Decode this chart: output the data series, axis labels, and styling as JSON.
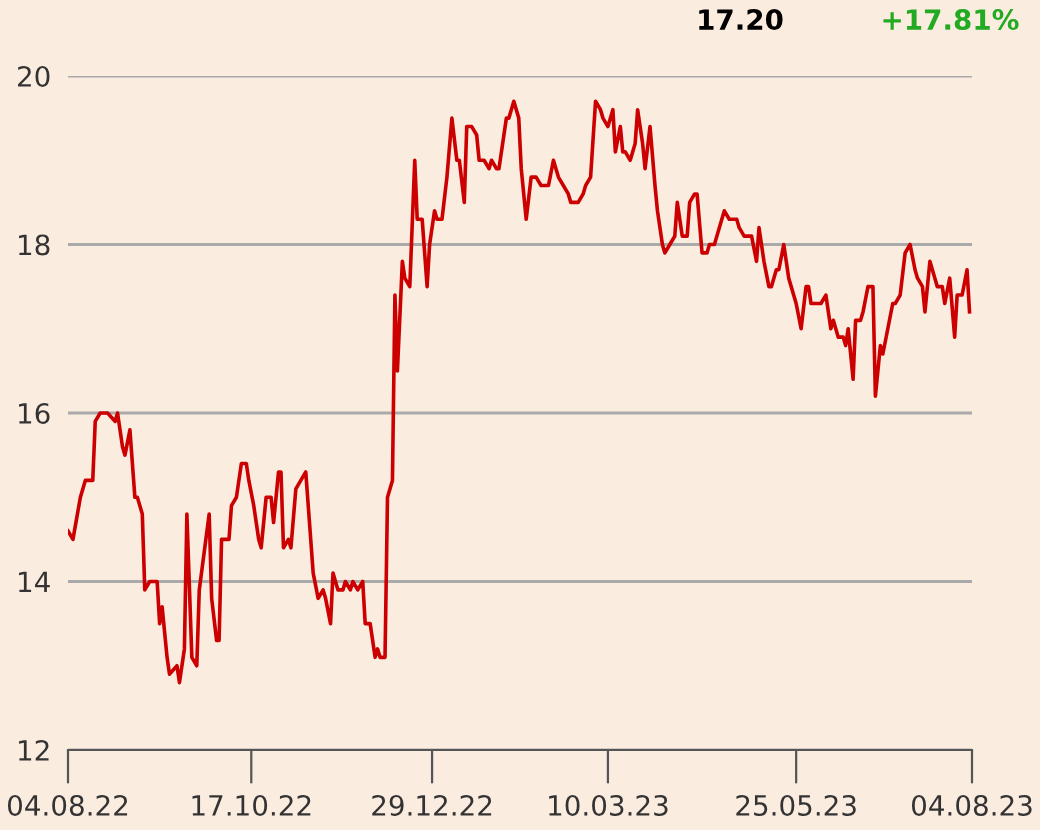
{
  "chart_data": {
    "type": "line",
    "annotations": [
      "17.20",
      "+17.81%"
    ],
    "x": [
      "2022-08-04",
      "2022-08-06",
      "2022-08-09",
      "2022-08-11",
      "2022-08-14",
      "2022-08-15",
      "2022-08-17",
      "2022-08-20",
      "2022-08-23",
      "2022-08-24",
      "2022-08-26",
      "2022-08-27",
      "2022-08-29",
      "2022-08-31",
      "2022-09-01",
      "2022-09-03",
      "2022-09-04",
      "2022-09-06",
      "2022-09-09",
      "2022-09-10",
      "2022-09-11",
      "2022-09-13",
      "2022-09-14",
      "2022-09-17",
      "2022-09-18",
      "2022-09-20",
      "2022-09-21",
      "2022-09-23",
      "2022-09-25",
      "2022-09-26",
      "2022-09-30",
      "2022-10-01",
      "2022-10-03",
      "2022-10-04",
      "2022-10-05",
      "2022-10-08",
      "2022-10-09",
      "2022-10-11",
      "2022-10-13",
      "2022-10-15",
      "2022-10-16",
      "2022-10-18",
      "2022-10-20",
      "2022-10-21",
      "2022-10-23",
      "2022-10-25",
      "2022-10-26",
      "2022-10-28",
      "2022-10-29",
      "2022-10-30",
      "2022-11-01",
      "2022-11-02",
      "2022-11-04",
      "2022-11-06",
      "2022-11-08",
      "2022-11-10",
      "2022-11-11",
      "2022-11-13",
      "2022-11-15",
      "2022-11-16",
      "2022-11-18",
      "2022-11-19",
      "2022-11-21",
      "2022-11-23",
      "2022-11-24",
      "2022-11-26",
      "2022-11-27",
      "2022-11-29",
      "2022-12-01",
      "2022-12-02",
      "2022-12-04",
      "2022-12-06",
      "2022-12-07",
      "2022-12-08",
      "2022-12-10",
      "2022-12-11",
      "2022-12-13",
      "2022-12-14",
      "2022-12-15",
      "2022-12-17",
      "2022-12-18",
      "2022-12-20",
      "2022-12-22",
      "2022-12-23",
      "2022-12-25",
      "2022-12-27",
      "2022-12-28",
      "2022-12-30",
      "2022-12-31",
      "2023-01-02",
      "2023-01-04",
      "2023-01-06",
      "2023-01-08",
      "2023-01-09",
      "2023-01-11",
      "2023-01-12",
      "2023-01-14",
      "2023-01-16",
      "2023-01-17",
      "2023-01-19",
      "2023-01-21",
      "2023-01-22",
      "2023-01-24",
      "2023-01-25",
      "2023-01-28",
      "2023-01-29",
      "2023-01-31",
      "2023-02-02",
      "2023-02-03",
      "2023-02-05",
      "2023-02-07",
      "2023-02-09",
      "2023-02-11",
      "2023-02-14",
      "2023-02-16",
      "2023-02-18",
      "2023-02-20",
      "2023-02-22",
      "2023-02-23",
      "2023-02-26",
      "2023-02-28",
      "2023-03-01",
      "2023-03-03",
      "2023-03-05",
      "2023-03-07",
      "2023-03-08",
      "2023-03-10",
      "2023-03-12",
      "2023-03-13",
      "2023-03-15",
      "2023-03-16",
      "2023-03-17",
      "2023-03-19",
      "2023-03-21",
      "2023-03-22",
      "2023-03-24",
      "2023-03-25",
      "2023-03-27",
      "2023-03-29",
      "2023-03-30",
      "2023-04-01",
      "2023-04-02",
      "2023-04-04",
      "2023-04-06",
      "2023-04-07",
      "2023-04-09",
      "2023-04-11",
      "2023-04-12",
      "2023-04-14",
      "2023-04-15",
      "2023-04-17",
      "2023-04-19",
      "2023-04-20",
      "2023-04-22",
      "2023-04-23",
      "2023-04-26",
      "2023-04-28",
      "2023-05-01",
      "2023-05-02",
      "2023-05-04",
      "2023-05-06",
      "2023-05-07",
      "2023-05-09",
      "2023-05-10",
      "2023-05-12",
      "2023-05-14",
      "2023-05-15",
      "2023-05-17",
      "2023-05-18",
      "2023-05-20",
      "2023-05-22",
      "2023-05-23",
      "2023-05-25",
      "2023-05-27",
      "2023-05-29",
      "2023-05-30",
      "2023-05-31",
      "2023-06-02",
      "2023-06-04",
      "2023-06-06",
      "2023-06-08",
      "2023-06-09",
      "2023-06-11",
      "2023-06-13",
      "2023-06-14",
      "2023-06-15",
      "2023-06-17",
      "2023-06-18",
      "2023-06-20",
      "2023-06-21",
      "2023-06-23",
      "2023-06-25",
      "2023-06-26",
      "2023-06-28",
      "2023-06-29",
      "2023-07-01",
      "2023-07-03",
      "2023-07-04",
      "2023-07-06",
      "2023-07-08",
      "2023-07-10",
      "2023-07-12",
      "2023-07-13",
      "2023-07-15",
      "2023-07-16",
      "2023-07-18",
      "2023-07-20",
      "2023-07-21",
      "2023-07-23",
      "2023-07-24",
      "2023-07-26",
      "2023-07-28",
      "2023-07-29",
      "2023-07-31",
      "2023-08-02",
      "2023-08-03"
    ],
    "series": [
      {
        "color": "#cc0000",
        "values": [
          14.6,
          14.5,
          15.0,
          15.2,
          15.2,
          15.9,
          16.0,
          16.0,
          15.9,
          16.0,
          15.6,
          15.5,
          15.8,
          15.0,
          15.0,
          14.8,
          13.9,
          14.0,
          14.0,
          13.5,
          13.7,
          13.1,
          12.9,
          13.0,
          12.8,
          13.2,
          14.8,
          13.1,
          13.0,
          13.9,
          14.8,
          13.8,
          13.3,
          13.3,
          14.5,
          14.5,
          14.9,
          15.0,
          15.4,
          15.4,
          15.2,
          14.9,
          14.5,
          14.4,
          15.0,
          15.0,
          14.7,
          15.3,
          15.3,
          14.4,
          14.5,
          14.4,
          15.1,
          15.2,
          15.3,
          14.5,
          14.1,
          13.8,
          13.9,
          13.8,
          13.5,
          14.1,
          13.9,
          13.9,
          14.0,
          13.9,
          14.0,
          13.9,
          14.0,
          13.5,
          13.5,
          13.1,
          13.2,
          13.1,
          13.1,
          15.0,
          15.2,
          17.4,
          16.5,
          17.8,
          17.6,
          17.5,
          19.0,
          18.3,
          18.3,
          17.5,
          18.0,
          18.4,
          18.3,
          18.3,
          18.8,
          19.5,
          19.0,
          19.0,
          18.5,
          19.4,
          19.4,
          19.3,
          19.0,
          19.0,
          18.9,
          19.0,
          18.9,
          18.9,
          19.5,
          19.5,
          19.7,
          19.5,
          18.9,
          18.3,
          18.8,
          18.8,
          18.7,
          18.7,
          19.0,
          18.8,
          18.7,
          18.6,
          18.5,
          18.5,
          18.6,
          18.7,
          18.8,
          19.7,
          19.6,
          19.5,
          19.4,
          19.6,
          19.1,
          19.4,
          19.1,
          19.1,
          19.0,
          19.2,
          19.6,
          19.2,
          18.9,
          19.4,
          18.7,
          18.4,
          18.0,
          17.9,
          18.0,
          18.1,
          18.5,
          18.1,
          18.1,
          18.5,
          18.6,
          18.6,
          17.9,
          17.9,
          18.0,
          18.0,
          18.1,
          18.4,
          18.3,
          18.3,
          18.2,
          18.1,
          18.1,
          18.1,
          17.8,
          18.2,
          17.8,
          17.5,
          17.5,
          17.7,
          17.7,
          18.0,
          17.6,
          17.5,
          17.3,
          17.0,
          17.5,
          17.5,
          17.3,
          17.3,
          17.3,
          17.4,
          17.0,
          17.1,
          16.9,
          16.9,
          16.8,
          17.0,
          16.4,
          17.1,
          17.1,
          17.2,
          17.5,
          17.5,
          16.2,
          16.8,
          16.7,
          17.0,
          17.3,
          17.3,
          17.4,
          17.9,
          18.0,
          17.7,
          17.6,
          17.5,
          17.2,
          17.8,
          17.6,
          17.5,
          17.5,
          17.3,
          17.6,
          16.9,
          17.4,
          17.4,
          17.7,
          17.2
        ]
      }
    ],
    "xlim": [
      "2022-08-04",
      "2023-08-04"
    ],
    "xticks": [
      {
        "value": "2022-08-04",
        "label": "04.08.22"
      },
      {
        "value": "2022-10-17",
        "label": "17.10.22"
      },
      {
        "value": "2022-12-29",
        "label": "29.12.22"
      },
      {
        "value": "2023-03-10",
        "label": "10.03.23"
      },
      {
        "value": "2023-05-25",
        "label": "25.05.23"
      },
      {
        "value": "2023-08-04",
        "label": "04.08.23"
      }
    ],
    "ylim": [
      12,
      20
    ],
    "yticks": [
      12,
      14,
      16,
      18,
      20
    ],
    "grid": "y",
    "legend": false
  }
}
